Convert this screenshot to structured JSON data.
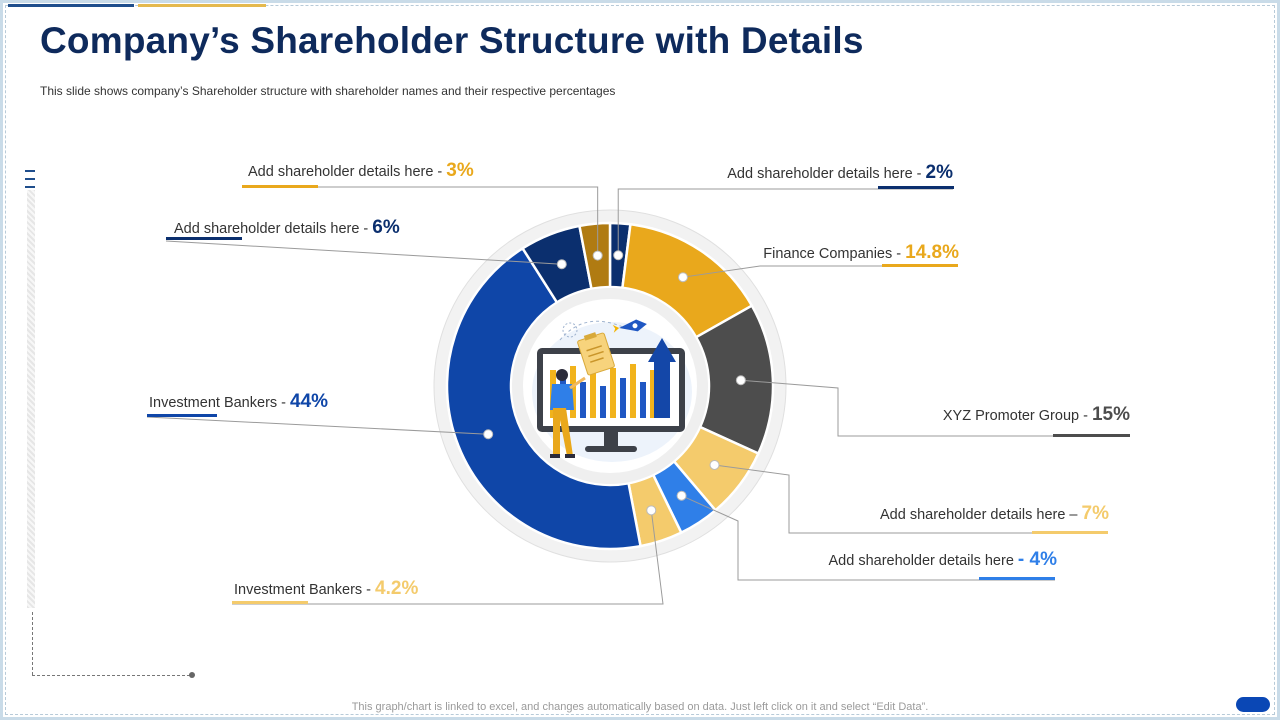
{
  "title": "Company’s Shareholder Structure with Details",
  "subtitle": "This slide shows company’s Shareholder  structure with shareholder names and their respective percentages",
  "footer": "This graph/chart is linked to excel, and changes automatically based on data. Just left click on it and select “Edit Data”.",
  "colors": {
    "navy": "#0b2f6e",
    "gold": "#e9a81c",
    "dark_gray": "#4d4d4d",
    "light_gold": "#f4cb6c",
    "light_blue": "#2f7fe8",
    "royal_blue": "#0f46a8",
    "dark_gold": "#b07b12"
  },
  "labels": [
    {
      "text": "Add shareholder details here - ",
      "pct": "2%",
      "color": "#0b2f6e"
    },
    {
      "text": "Finance Companies - ",
      "pct": "14.8%",
      "color": "#e9a81c"
    },
    {
      "text": "XYZ  Promoter Group - ",
      "pct": "15%",
      "color": "#4d4d4d"
    },
    {
      "text": "Add shareholder details here – ",
      "pct": "7%",
      "color": "#f4cb6c"
    },
    {
      "text": "Add shareholder details here ",
      "pct": "- 4%",
      "color": "#2f7fe8"
    },
    {
      "text": "Investment Bankers - ",
      "pct": "4.2%",
      "color": "#f4cb6c"
    },
    {
      "text": "Investment Bankers - ",
      "pct": "44%",
      "color": "#0f46a8"
    },
    {
      "text": "Add shareholder details here - ",
      "pct": "6%",
      "color": "#0b2f6e"
    },
    {
      "text": "Add shareholder details here - ",
      "pct": "3%",
      "color": "#e9a81c"
    }
  ],
  "chart_data": {
    "type": "pie",
    "donut": true,
    "categories": [
      "Add shareholder details here",
      "Finance Companies",
      "XYZ Promoter Group",
      "Add shareholder details here",
      "Add shareholder details here",
      "Investment Bankers",
      "Investment Bankers",
      "Add shareholder details here",
      "Add shareholder details here"
    ],
    "values": [
      2,
      14.8,
      15,
      7,
      4,
      4.2,
      44,
      6,
      3
    ],
    "colors": [
      "#0b2f6e",
      "#e9a81c",
      "#4d4d4d",
      "#f4cb6c",
      "#2f7fe8",
      "#f4cb6c",
      "#0f46a8",
      "#0b2f6e",
      "#b07b12"
    ],
    "start": "top",
    "direction": "clockwise",
    "title": "Company’s Shareholder Structure with Details"
  }
}
